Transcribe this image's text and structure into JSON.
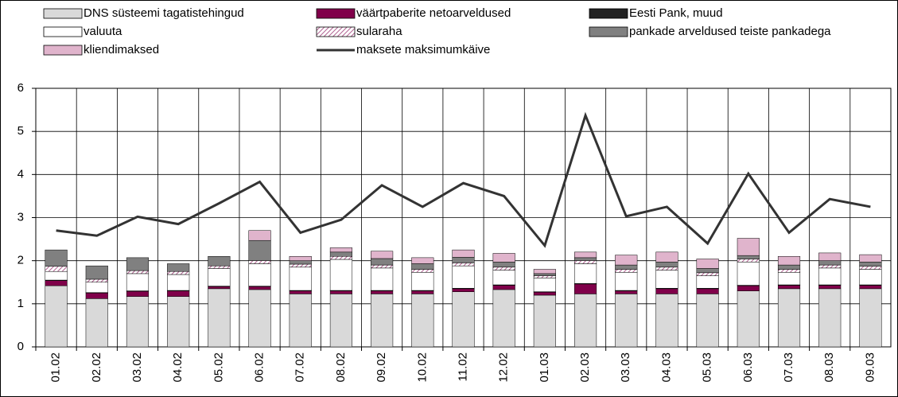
{
  "chart_data": {
    "type": "bar",
    "stacked": true,
    "categories": [
      "01.02",
      "02.02",
      "03.02",
      "04.02",
      "05.02",
      "06.02",
      "07.02",
      "08.02",
      "09.02",
      "10.02",
      "11.02",
      "12.02",
      "01.03",
      "02.03",
      "03.03",
      "04.03",
      "05.03",
      "06.03",
      "07.03",
      "08.03",
      "09.03"
    ],
    "series": [
      {
        "name": "DNS süsteemi tagatistehingud",
        "color": "#d9d9d9",
        "values": [
          1.42,
          1.12,
          1.17,
          1.17,
          1.35,
          1.33,
          1.23,
          1.23,
          1.23,
          1.23,
          1.28,
          1.33,
          1.2,
          1.23,
          1.23,
          1.23,
          1.23,
          1.3,
          1.35,
          1.35,
          1.35
        ]
      },
      {
        "name": "väärtpaberite netoarveldused",
        "color": "#80004a",
        "values": [
          0.12,
          0.13,
          0.12,
          0.13,
          0.05,
          0.07,
          0.07,
          0.07,
          0.07,
          0.07,
          0.07,
          0.1,
          0.07,
          0.23,
          0.07,
          0.12,
          0.12,
          0.12,
          0.08,
          0.08,
          0.08
        ]
      },
      {
        "name": "Eesti Pank, muud",
        "color": "#222222",
        "values": [
          0.01,
          0.01,
          0.01,
          0.01,
          0.01,
          0.01,
          0.01,
          0.01,
          0.01,
          0.01,
          0.01,
          0.01,
          0.01,
          0.01,
          0.01,
          0.01,
          0.01,
          0.01,
          0.01,
          0.01,
          0.01
        ]
      },
      {
        "name": "valuuta",
        "color": "#ffffff",
        "values": [
          0.2,
          0.24,
          0.4,
          0.37,
          0.41,
          0.52,
          0.54,
          0.72,
          0.52,
          0.42,
          0.52,
          0.34,
          0.32,
          0.46,
          0.42,
          0.42,
          0.29,
          0.54,
          0.29,
          0.39,
          0.36
        ]
      },
      {
        "name": "sularaha",
        "color": "#b06090",
        "hatch": true,
        "values": [
          0.12,
          0.07,
          0.07,
          0.07,
          0.06,
          0.07,
          0.07,
          0.07,
          0.07,
          0.07,
          0.07,
          0.07,
          0.05,
          0.07,
          0.07,
          0.07,
          0.07,
          0.07,
          0.07,
          0.07,
          0.07
        ]
      },
      {
        "name": "pankade arveldused teiste pankadega",
        "color": "#808080",
        "values": [
          0.38,
          0.31,
          0.3,
          0.18,
          0.22,
          0.47,
          0.08,
          0.1,
          0.15,
          0.13,
          0.13,
          0.12,
          0.05,
          0.07,
          0.1,
          0.12,
          0.1,
          0.08,
          0.1,
          0.1,
          0.1
        ]
      },
      {
        "name": "kliendimaksed",
        "color": "#e0b4cc",
        "values": [
          0,
          0,
          0,
          0,
          0,
          0.23,
          0.1,
          0.1,
          0.17,
          0.14,
          0.17,
          0.2,
          0.1,
          0.13,
          0.23,
          0.23,
          0.22,
          0.4,
          0.2,
          0.18,
          0.17
        ]
      },
      {
        "name": "maksete maksimumkäive",
        "type": "line",
        "color": "#333333",
        "values": [
          2.7,
          2.58,
          3.02,
          2.85,
          3.33,
          3.83,
          2.65,
          2.95,
          3.75,
          3.25,
          3.8,
          3.5,
          2.35,
          5.37,
          3.03,
          3.25,
          2.4,
          4.02,
          2.65,
          3.43,
          3.25
        ]
      }
    ],
    "ylim": [
      0,
      6
    ],
    "yticks": [
      0,
      1,
      2,
      3,
      4,
      5,
      6
    ],
    "grid": true
  }
}
